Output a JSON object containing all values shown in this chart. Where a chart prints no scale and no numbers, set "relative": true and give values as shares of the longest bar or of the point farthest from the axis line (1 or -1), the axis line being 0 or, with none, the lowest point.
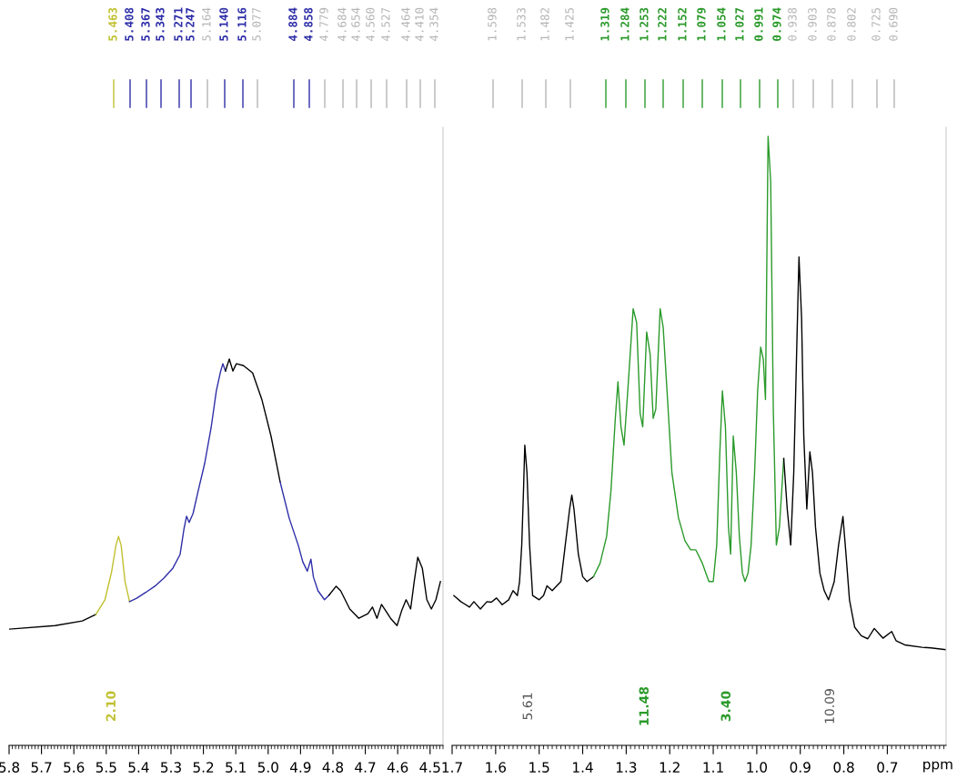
{
  "chart_data": [
    {
      "type": "line",
      "relative": true,
      "xlim": [
        5.8,
        4.46
      ],
      "xticks": [
        5.8,
        5.7,
        5.6,
        5.5,
        5.4,
        5.3,
        5.2,
        5.1,
        {
          "value": 5.0,
          "label": "5.0"
        },
        4.9,
        4.8,
        4.7,
        4.6,
        4.5
      ],
      "tick_labels": "x",
      "grid": false,
      "legend": false,
      "series": [
        {
          "color": "#000000",
          "x": [
            5.798,
            5.658,
            5.574,
            5.532
          ],
          "values": [
            0.301,
            0.31,
            0.322,
            0.339
          ]
        },
        {
          "color": "#c0c030",
          "x": [
            5.532,
            5.504,
            5.484,
            5.47,
            5.462,
            5.454,
            5.442,
            5.428
          ],
          "values": [
            0.339,
            0.377,
            0.447,
            0.518,
            0.541,
            0.518,
            0.424,
            0.372
          ]
        },
        {
          "color": "#2e2ea8",
          "x": [
            5.428,
            5.406,
            5.378,
            5.35,
            5.322,
            5.294,
            5.272,
            5.26,
            5.252,
            5.244,
            5.232,
            5.216,
            5.196,
            5.176,
            5.16,
            5.148,
            5.14,
            5.132
          ],
          "values": [
            0.372,
            0.381,
            0.396,
            0.412,
            0.433,
            0.459,
            0.494,
            0.56,
            0.593,
            0.577,
            0.6,
            0.659,
            0.73,
            0.823,
            0.918,
            0.964,
            0.988,
            0.969
          ]
        },
        {
          "color": "#000000",
          "x": [
            5.132,
            5.12,
            5.109,
            5.098,
            5.076,
            5.048,
            5.019,
            4.991,
            4.963
          ],
          "values": [
            0.969,
            1.0,
            0.969,
            0.988,
            0.983,
            0.964,
            0.894,
            0.8,
            0.682
          ]
        },
        {
          "color": "#2e2ea8",
          "x": [
            4.963,
            4.935,
            4.907,
            4.893,
            4.879,
            4.868,
            4.86,
            4.846,
            4.826,
            4.812
          ],
          "values": [
            0.682,
            0.588,
            0.518,
            0.475,
            0.451,
            0.482,
            0.435,
            0.4,
            0.377,
            0.389
          ]
        },
        {
          "color": "#000000",
          "x": [
            4.812,
            4.79,
            4.776,
            4.748,
            4.72,
            4.692,
            4.678,
            4.664,
            4.65,
            4.622,
            4.602,
            4.588,
            4.574,
            4.56,
            4.549,
            4.538,
            4.524,
            4.51,
            4.496,
            4.482,
            4.468
          ],
          "values": [
            0.389,
            0.412,
            0.4,
            0.353,
            0.329,
            0.341,
            0.358,
            0.329,
            0.365,
            0.329,
            0.31,
            0.348,
            0.377,
            0.353,
            0.424,
            0.487,
            0.459,
            0.377,
            0.353,
            0.377,
            0.424
          ]
        }
      ],
      "annotations": [
        "5.463",
        "5.408",
        "5.367",
        "5.343",
        "5.271",
        "5.247",
        "5.164",
        "5.140",
        "5.116",
        "5.077",
        "4.884",
        "4.858",
        "4.779",
        "4.684",
        "4.654",
        "4.560",
        "4.527",
        "4.464",
        "4.410",
        "4.354",
        "2.10"
      ]
    },
    {
      "type": "line",
      "relative": true,
      "xlim": [
        1.7,
        0.565
      ],
      "xticks": [
        1.7,
        1.6,
        1.5,
        1.4,
        1.3,
        1.2,
        1.1,
        {
          "value": 1.0,
          "label": "1.0"
        },
        0.9,
        0.8,
        0.7
      ],
      "xlabel": "ppm",
      "tick_labels": "x",
      "grid": false,
      "legend": false,
      "series": [
        {
          "color": "#000000",
          "x": [
            1.696,
            1.68,
            1.66,
            1.65,
            1.635,
            1.62,
            1.61,
            1.598,
            1.585,
            1.57,
            1.56,
            1.55,
            1.545,
            1.54,
            1.536,
            1.533,
            1.528,
            1.522,
            1.515,
            1.5,
            1.49,
            1.482,
            1.47,
            1.45,
            1.44,
            1.43,
            1.425,
            1.42,
            1.41,
            1.4,
            1.39,
            1.375
          ],
          "values": [
            0.246,
            0.236,
            0.227,
            0.236,
            0.224,
            0.236,
            0.235,
            0.242,
            0.231,
            0.239,
            0.254,
            0.246,
            0.269,
            0.329,
            0.418,
            0.493,
            0.448,
            0.329,
            0.246,
            0.239,
            0.246,
            0.262,
            0.254,
            0.269,
            0.329,
            0.388,
            0.411,
            0.388,
            0.314,
            0.277,
            0.269,
            0.277
          ]
        },
        {
          "color": "#2a9a2a",
          "x": [
            1.375,
            1.36,
            1.345,
            1.335,
            1.325,
            1.319,
            1.312,
            1.305,
            1.295,
            1.284,
            1.276,
            1.268,
            1.262,
            1.253,
            1.245,
            1.238,
            1.232,
            1.222,
            1.215,
            1.205,
            1.195,
            1.18,
            1.165,
            1.152,
            1.14,
            1.125,
            1.11,
            1.1,
            1.092,
            1.085,
            1.079,
            1.072,
            1.065,
            1.06,
            1.054,
            1.047,
            1.04,
            1.033,
            1.027,
            1.02,
            1.013,
            1.005,
            0.998,
            0.991,
            0.985,
            0.98,
            0.974,
            0.968,
            0.962,
            0.955,
            0.948,
            0.938
          ],
          "values": [
            0.277,
            0.299,
            0.343,
            0.418,
            0.537,
            0.597,
            0.523,
            0.493,
            0.597,
            0.717,
            0.694,
            0.545,
            0.523,
            0.679,
            0.642,
            0.537,
            0.552,
            0.717,
            0.686,
            0.568,
            0.448,
            0.374,
            0.336,
            0.321,
            0.321,
            0.299,
            0.269,
            0.269,
            0.329,
            0.478,
            0.582,
            0.523,
            0.358,
            0.314,
            0.508,
            0.448,
            0.343,
            0.283,
            0.269,
            0.283,
            0.329,
            0.448,
            0.582,
            0.654,
            0.634,
            0.568,
            1.0,
            0.926,
            0.552,
            0.329,
            0.358,
            0.471
          ]
        },
        {
          "color": "#000000",
          "x": [
            0.938,
            0.93,
            0.922,
            0.915,
            0.908,
            0.903,
            0.897,
            0.892,
            0.885,
            0.878,
            0.872,
            0.865,
            0.855,
            0.845,
            0.835,
            0.822,
            0.812,
            0.802,
            0.795,
            0.787,
            0.775,
            0.76,
            0.745,
            0.73,
            0.72,
            0.71,
            0.69,
            0.68,
            0.66,
            0.62,
            0.6,
            0.565
          ],
          "values": [
            0.471,
            0.388,
            0.329,
            0.448,
            0.657,
            0.802,
            0.702,
            0.508,
            0.388,
            0.482,
            0.448,
            0.358,
            0.283,
            0.254,
            0.239,
            0.269,
            0.329,
            0.376,
            0.314,
            0.239,
            0.194,
            0.18,
            0.175,
            0.192,
            0.184,
            0.176,
            0.187,
            0.172,
            0.165,
            0.161,
            0.16,
            0.157
          ]
        }
      ],
      "annotations": [
        "1.598",
        "1.533",
        "1.482",
        "1.425",
        "1.319",
        "1.284",
        "1.253",
        "1.222",
        "1.152",
        "1.079",
        "1.054",
        "1.027",
        "0.991",
        "0.974",
        "0.938",
        "0.903",
        "0.878",
        "0.802",
        "0.725",
        "0.690",
        "5.61",
        "11.48",
        "3.40",
        "10.09"
      ]
    }
  ]
}
